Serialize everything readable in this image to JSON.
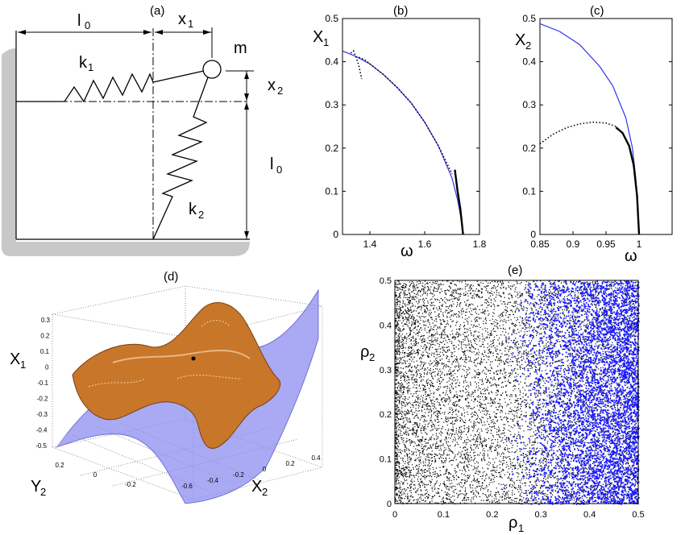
{
  "panel_labels": {
    "a": "(a)",
    "b": "(b)",
    "c": "(c)",
    "d": "(d)",
    "e": "(e)"
  },
  "schematic": {
    "l0_top": "l",
    "l0_top_sub": "0",
    "x1": "x",
    "x1_sub": "1",
    "mass": "m",
    "k1": "k",
    "k1_sub": "1",
    "x2": "x",
    "x2_sub": "2",
    "l0_right": "l",
    "l0_right_sub": "0",
    "k2": "k",
    "k2_sub": "2"
  },
  "colors": {
    "blue": "#3333ee",
    "scatter_blue": "#1a1aff",
    "orange": "#c8762a",
    "surface_blue": "#8c8cf0",
    "wall_gray": "#c8c8c8"
  },
  "chart_data": [
    {
      "id": "b",
      "type": "line",
      "title": "(b)",
      "ylabel": "X",
      "ylabel_sub": "1",
      "xlabel": "ω",
      "xlim": [
        1.3,
        1.8
      ],
      "ylim": [
        0,
        0.5
      ],
      "xticks": [
        "1.4",
        "1.6",
        "1.8"
      ],
      "yticks": [
        "0",
        "0.1",
        "0.2",
        "0.3",
        "0.4",
        "0.5"
      ],
      "series": [
        {
          "name": "blue",
          "style": "solid-blue",
          "x": [
            1.3,
            1.35,
            1.4,
            1.45,
            1.5,
            1.55,
            1.6,
            1.65,
            1.7,
            1.72,
            1.735,
            1.74
          ],
          "y": [
            0.425,
            0.412,
            0.395,
            0.37,
            0.34,
            0.305,
            0.26,
            0.205,
            0.13,
            0.08,
            0.03,
            0.0
          ]
        },
        {
          "name": "black-solid",
          "style": "solid-black",
          "x": [
            1.71,
            1.72,
            1.73,
            1.735,
            1.74
          ],
          "y": [
            0.15,
            0.1,
            0.06,
            0.03,
            0.0
          ]
        },
        {
          "name": "black-dotted",
          "style": "dotted",
          "x": [
            1.36,
            1.38,
            1.4,
            1.45,
            1.5,
            1.55,
            1.6,
            1.65,
            1.7
          ],
          "y": [
            0.41,
            0.405,
            0.395,
            0.37,
            0.34,
            0.305,
            0.26,
            0.205,
            0.14
          ]
        },
        {
          "name": "black-dotted-branch",
          "style": "dotted",
          "x": [
            1.33,
            1.34,
            1.35,
            1.36,
            1.37
          ],
          "y": [
            0.42,
            0.425,
            0.41,
            0.39,
            0.36
          ]
        }
      ]
    },
    {
      "id": "c",
      "type": "line",
      "title": "(c)",
      "ylabel": "X",
      "ylabel_sub": "2",
      "xlabel": "ω",
      "xlim": [
        0.85,
        1.05
      ],
      "ylim": [
        0,
        0.5
      ],
      "xticks": [
        "0.85",
        "0.9",
        "0.95",
        "1"
      ],
      "yticks": [
        "0",
        "0.1",
        "0.2",
        "0.3",
        "0.4",
        "0.5"
      ],
      "series": [
        {
          "name": "blue",
          "style": "solid-blue",
          "x": [
            0.85,
            0.88,
            0.91,
            0.94,
            0.96,
            0.98,
            0.99,
            0.995,
            1.0
          ],
          "y": [
            0.488,
            0.47,
            0.44,
            0.39,
            0.345,
            0.27,
            0.2,
            0.13,
            0.0
          ]
        },
        {
          "name": "black-dotted",
          "style": "dotted",
          "x": [
            0.85,
            0.87,
            0.89,
            0.91,
            0.93,
            0.95,
            0.965
          ],
          "y": [
            0.21,
            0.232,
            0.247,
            0.256,
            0.26,
            0.258,
            0.25
          ]
        },
        {
          "name": "black-solid",
          "style": "solid-black",
          "x": [
            0.965,
            0.975,
            0.985,
            0.992,
            0.997,
            1.0
          ],
          "y": [
            0.248,
            0.235,
            0.205,
            0.16,
            0.09,
            0.0
          ]
        }
      ]
    },
    {
      "id": "d",
      "type": "surface3d",
      "title": "(d)",
      "zlabel": "X",
      "zlabel_sub": "1",
      "ylabel": "Y",
      "ylabel_sub": "2",
      "xlabel": "X",
      "xlabel_sub": "2",
      "zticks": [
        "0.3",
        "0.2",
        "0.1",
        "0",
        "-0.1",
        "-0.2",
        "-0.3",
        "-0.4",
        "-0.5"
      ],
      "yticks": [
        "0.2",
        "0",
        "-0.2"
      ],
      "xticks": [
        "-0.6",
        "-0.4",
        "-0.2",
        "0",
        "0.2",
        "0.4"
      ]
    },
    {
      "id": "e",
      "type": "scatter",
      "title": "(e)",
      "xlabel": "ρ",
      "xlabel_sub": "1",
      "ylabel": "ρ",
      "ylabel_sub": "2",
      "xlim": [
        0,
        0.5
      ],
      "ylim": [
        0,
        0.5
      ],
      "xticks": [
        "0",
        "0.1",
        "0.2",
        "0.3",
        "0.4",
        "0.5"
      ],
      "yticks": [
        "0",
        "0.1",
        "0.2",
        "0.3",
        "0.4",
        "0.5"
      ],
      "series": [
        {
          "name": "black",
          "color": "#000000",
          "x_range": [
            0,
            0.5
          ],
          "y_range": [
            0,
            0.5
          ],
          "density": "decreasing with ρ1",
          "count": 9000
        },
        {
          "name": "blue",
          "color": "#1a1aff",
          "x_range": [
            0.22,
            0.5
          ],
          "y_range": [
            0,
            0.5
          ],
          "density": "increasing with ρ1",
          "count": 5500
        }
      ]
    }
  ]
}
